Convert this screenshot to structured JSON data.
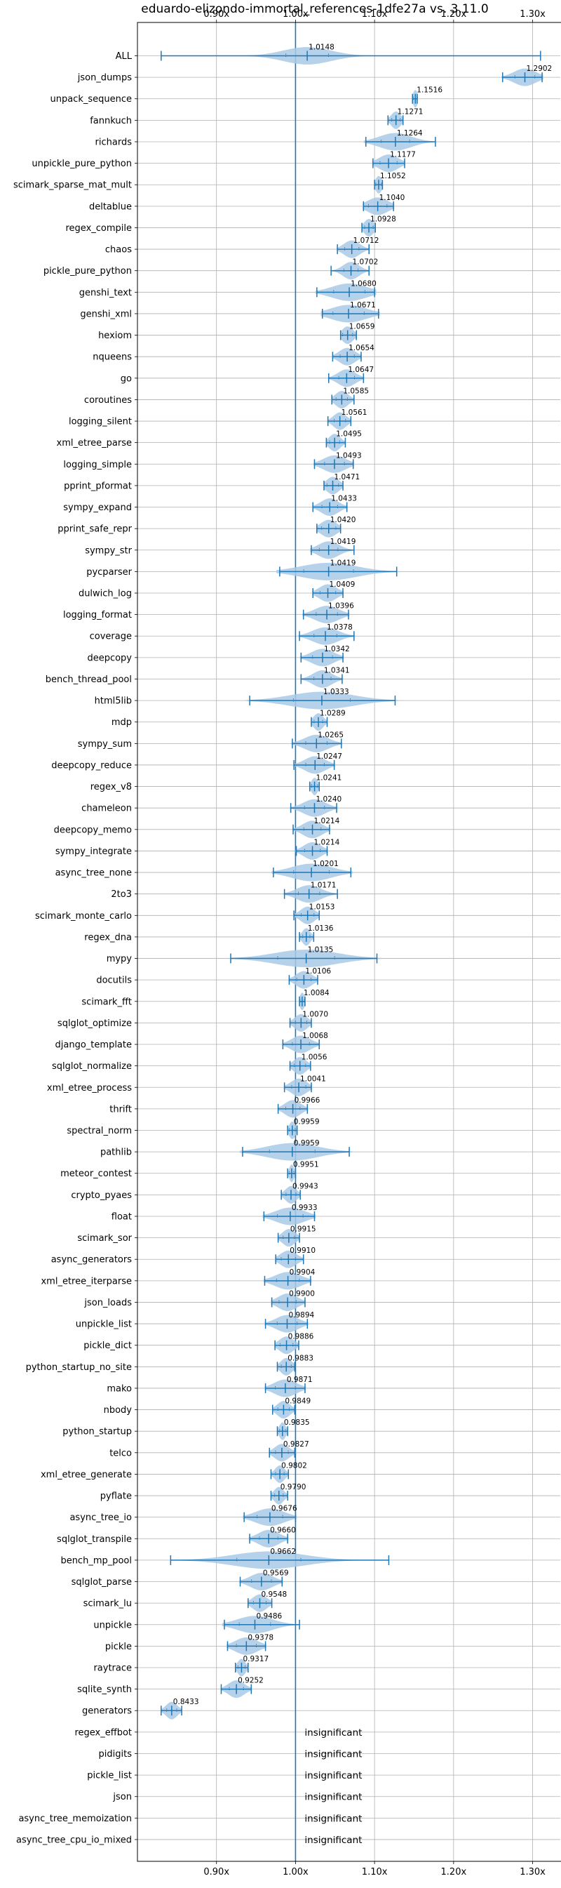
{
  "chart_data": {
    "type": "violin",
    "title": "eduardo-elizondo-immortal_references-1dfe27a vs. 3.11.0",
    "xlabel": "",
    "ylabel": "",
    "xlim": [
      0.8,
      1.335
    ],
    "x_ticks": [
      0.9,
      1.0,
      1.1,
      1.2,
      1.3
    ],
    "x_tick_labels": [
      "0.90x",
      "1.00x",
      "1.10x",
      "1.20x",
      "1.30x"
    ],
    "reference_line": 1.0,
    "grid": true,
    "insignificant_text": "insignificant",
    "colors": {
      "violin": "#a9c9e6",
      "line": "#1f77b4"
    },
    "benchmarks": [
      {
        "name": "ALL",
        "value": 1.0148,
        "min": 0.83,
        "max": 1.31,
        "spread": 0.03,
        "label": "1.0148"
      },
      {
        "name": "json_dumps",
        "value": 1.2902,
        "min": 1.262,
        "max": 1.312,
        "spread": 0.014,
        "label": "1.2902"
      },
      {
        "name": "unpack_sequence",
        "value": 1.1516,
        "min": 1.148,
        "max": 1.154,
        "spread": 0.003,
        "label": "1.1516"
      },
      {
        "name": "fannkuch",
        "value": 1.1271,
        "min": 1.117,
        "max": 1.136,
        "spread": 0.006,
        "label": "1.1271"
      },
      {
        "name": "richards",
        "value": 1.1264,
        "min": 1.089,
        "max": 1.177,
        "spread": 0.02,
        "label": "1.1264"
      },
      {
        "name": "unpickle_pure_python",
        "value": 1.1177,
        "min": 1.098,
        "max": 1.138,
        "spread": 0.012,
        "label": "1.1177"
      },
      {
        "name": "scimark_sparse_mat_mult",
        "value": 1.1052,
        "min": 1.1,
        "max": 1.11,
        "spread": 0.004,
        "label": "1.1052"
      },
      {
        "name": "deltablue",
        "value": 1.104,
        "min": 1.086,
        "max": 1.124,
        "spread": 0.013,
        "label": "1.1040"
      },
      {
        "name": "regex_compile",
        "value": 1.0928,
        "min": 1.084,
        "max": 1.101,
        "spread": 0.006,
        "label": "1.0928"
      },
      {
        "name": "chaos",
        "value": 1.0712,
        "min": 1.053,
        "max": 1.093,
        "spread": 0.01,
        "label": "1.0712"
      },
      {
        "name": "pickle_pure_python",
        "value": 1.0702,
        "min": 1.045,
        "max": 1.093,
        "spread": 0.01,
        "label": "1.0702"
      },
      {
        "name": "genshi_text",
        "value": 1.068,
        "min": 1.027,
        "max": 1.1,
        "spread": 0.022,
        "label": "1.0680"
      },
      {
        "name": "genshi_xml",
        "value": 1.0671,
        "min": 1.034,
        "max": 1.105,
        "spread": 0.022,
        "label": "1.0671"
      },
      {
        "name": "hexiom",
        "value": 1.0659,
        "min": 1.057,
        "max": 1.077,
        "spread": 0.007,
        "label": "1.0659"
      },
      {
        "name": "nqueens",
        "value": 1.0654,
        "min": 1.047,
        "max": 1.083,
        "spread": 0.01,
        "label": "1.0654"
      },
      {
        "name": "go",
        "value": 1.0647,
        "min": 1.042,
        "max": 1.086,
        "spread": 0.011,
        "label": "1.0647"
      },
      {
        "name": "coroutines",
        "value": 1.0585,
        "min": 1.046,
        "max": 1.074,
        "spread": 0.008,
        "label": "1.0585"
      },
      {
        "name": "logging_silent",
        "value": 1.0561,
        "min": 1.041,
        "max": 1.07,
        "spread": 0.008,
        "label": "1.0561"
      },
      {
        "name": "xml_etree_parse",
        "value": 1.0495,
        "min": 1.039,
        "max": 1.063,
        "spread": 0.007,
        "label": "1.0495"
      },
      {
        "name": "logging_simple",
        "value": 1.0493,
        "min": 1.024,
        "max": 1.073,
        "spread": 0.014,
        "label": "1.0493"
      },
      {
        "name": "pprint_pformat",
        "value": 1.0471,
        "min": 1.036,
        "max": 1.06,
        "spread": 0.008,
        "label": "1.0471"
      },
      {
        "name": "sympy_expand",
        "value": 1.0433,
        "min": 1.022,
        "max": 1.065,
        "spread": 0.011,
        "label": "1.0433"
      },
      {
        "name": "pprint_safe_repr",
        "value": 1.042,
        "min": 1.027,
        "max": 1.057,
        "spread": 0.01,
        "label": "1.0420"
      },
      {
        "name": "sympy_str",
        "value": 1.0419,
        "min": 1.02,
        "max": 1.074,
        "spread": 0.013,
        "label": "1.0419"
      },
      {
        "name": "pycparser",
        "value": 1.0419,
        "min": 0.98,
        "max": 1.128,
        "spread": 0.035,
        "label": "1.0419"
      },
      {
        "name": "dulwich_log",
        "value": 1.0409,
        "min": 1.022,
        "max": 1.06,
        "spread": 0.011,
        "label": "1.0409"
      },
      {
        "name": "logging_format",
        "value": 1.0396,
        "min": 1.01,
        "max": 1.067,
        "spread": 0.015,
        "label": "1.0396"
      },
      {
        "name": "coverage",
        "value": 1.0378,
        "min": 1.005,
        "max": 1.074,
        "spread": 0.016,
        "label": "1.0378"
      },
      {
        "name": "deepcopy",
        "value": 1.0342,
        "min": 1.007,
        "max": 1.06,
        "spread": 0.014,
        "label": "1.0342"
      },
      {
        "name": "bench_thread_pool",
        "value": 1.0341,
        "min": 1.007,
        "max": 1.059,
        "spread": 0.012,
        "label": "1.0341"
      },
      {
        "name": "html5lib",
        "value": 1.0333,
        "min": 0.942,
        "max": 1.126,
        "spread": 0.04,
        "label": "1.0333"
      },
      {
        "name": "mdp",
        "value": 1.0289,
        "min": 1.02,
        "max": 1.04,
        "spread": 0.006,
        "label": "1.0289"
      },
      {
        "name": "sympy_sum",
        "value": 1.0265,
        "min": 0.996,
        "max": 1.058,
        "spread": 0.015,
        "label": "1.0265"
      },
      {
        "name": "deepcopy_reduce",
        "value": 1.0247,
        "min": 0.998,
        "max": 1.049,
        "spread": 0.013,
        "label": "1.0247"
      },
      {
        "name": "regex_v8",
        "value": 1.0241,
        "min": 1.018,
        "max": 1.03,
        "spread": 0.004,
        "label": "1.0241"
      },
      {
        "name": "chameleon",
        "value": 1.024,
        "min": 0.994,
        "max": 1.052,
        "spread": 0.014,
        "label": "1.0240"
      },
      {
        "name": "deepcopy_memo",
        "value": 1.0214,
        "min": 0.997,
        "max": 1.043,
        "spread": 0.012,
        "label": "1.0214"
      },
      {
        "name": "sympy_integrate",
        "value": 1.0214,
        "min": 1.001,
        "max": 1.04,
        "spread": 0.011,
        "label": "1.0214"
      },
      {
        "name": "async_tree_none",
        "value": 1.0201,
        "min": 0.972,
        "max": 1.07,
        "spread": 0.025,
        "label": "1.0201"
      },
      {
        "name": "2to3",
        "value": 1.0171,
        "min": 0.986,
        "max": 1.053,
        "spread": 0.015,
        "label": "1.0171"
      },
      {
        "name": "scimark_monte_carlo",
        "value": 1.0153,
        "min": 0.998,
        "max": 1.03,
        "spread": 0.009,
        "label": "1.0153"
      },
      {
        "name": "regex_dna",
        "value": 1.0136,
        "min": 1.005,
        "max": 1.023,
        "spread": 0.005,
        "label": "1.0136"
      },
      {
        "name": "mypy",
        "value": 1.0135,
        "min": 0.918,
        "max": 1.103,
        "spread": 0.04,
        "label": "1.0135"
      },
      {
        "name": "docutils",
        "value": 1.0106,
        "min": 0.992,
        "max": 1.028,
        "spread": 0.01,
        "label": "1.0106"
      },
      {
        "name": "scimark_fft",
        "value": 1.0084,
        "min": 1.005,
        "max": 1.012,
        "spread": 0.003,
        "label": "1.0084"
      },
      {
        "name": "sqlglot_optimize",
        "value": 1.007,
        "min": 0.993,
        "max": 1.02,
        "spread": 0.008,
        "label": "1.0070"
      },
      {
        "name": "django_template",
        "value": 1.0068,
        "min": 0.984,
        "max": 1.03,
        "spread": 0.012,
        "label": "1.0068"
      },
      {
        "name": "sqlglot_normalize",
        "value": 1.0056,
        "min": 0.993,
        "max": 1.019,
        "spread": 0.008,
        "label": "1.0056"
      },
      {
        "name": "xml_etree_process",
        "value": 1.0041,
        "min": 0.986,
        "max": 1.02,
        "spread": 0.01,
        "label": "1.0041"
      },
      {
        "name": "thrift",
        "value": 0.9966,
        "min": 0.978,
        "max": 1.015,
        "spread": 0.01,
        "label": "0.9966"
      },
      {
        "name": "spectral_norm",
        "value": 0.9959,
        "min": 0.99,
        "max": 1.002,
        "spread": 0.004,
        "label": "0.9959"
      },
      {
        "name": "pathlib",
        "value": 0.9959,
        "min": 0.933,
        "max": 1.068,
        "spread": 0.032,
        "label": "0.9959"
      },
      {
        "name": "meteor_contest",
        "value": 0.9951,
        "min": 0.99,
        "max": 1.0,
        "spread": 0.003,
        "label": "0.9951"
      },
      {
        "name": "crypto_pyaes",
        "value": 0.9943,
        "min": 0.982,
        "max": 1.006,
        "spread": 0.007,
        "label": "0.9943"
      },
      {
        "name": "float",
        "value": 0.9933,
        "min": 0.96,
        "max": 1.024,
        "spread": 0.018,
        "label": "0.9933"
      },
      {
        "name": "scimark_sor",
        "value": 0.9915,
        "min": 0.978,
        "max": 1.005,
        "spread": 0.008,
        "label": "0.9915"
      },
      {
        "name": "async_generators",
        "value": 0.991,
        "min": 0.975,
        "max": 1.01,
        "spread": 0.01,
        "label": "0.9910"
      },
      {
        "name": "xml_etree_iterparse",
        "value": 0.9904,
        "min": 0.961,
        "max": 1.019,
        "spread": 0.016,
        "label": "0.9904"
      },
      {
        "name": "json_loads",
        "value": 0.99,
        "min": 0.97,
        "max": 1.012,
        "spread": 0.012,
        "label": "0.9900"
      },
      {
        "name": "unpickle_list",
        "value": 0.9894,
        "min": 0.962,
        "max": 1.015,
        "spread": 0.014,
        "label": "0.9894"
      },
      {
        "name": "pickle_dict",
        "value": 0.9886,
        "min": 0.974,
        "max": 1.004,
        "spread": 0.009,
        "label": "0.9886"
      },
      {
        "name": "python_startup_no_site",
        "value": 0.9883,
        "min": 0.977,
        "max": 0.999,
        "spread": 0.007,
        "label": "0.9883"
      },
      {
        "name": "mako",
        "value": 0.9871,
        "min": 0.962,
        "max": 1.012,
        "spread": 0.014,
        "label": "0.9871"
      },
      {
        "name": "nbody",
        "value": 0.9849,
        "min": 0.971,
        "max": 0.999,
        "spread": 0.008,
        "label": "0.9849"
      },
      {
        "name": "python_startup",
        "value": 0.9835,
        "min": 0.977,
        "max": 0.99,
        "spread": 0.004,
        "label": "0.9835"
      },
      {
        "name": "telco",
        "value": 0.9827,
        "min": 0.967,
        "max": 0.999,
        "spread": 0.009,
        "label": "0.9827"
      },
      {
        "name": "xml_etree_generate",
        "value": 0.9802,
        "min": 0.969,
        "max": 0.991,
        "spread": 0.006,
        "label": "0.9802"
      },
      {
        "name": "pyflate",
        "value": 0.979,
        "min": 0.969,
        "max": 0.99,
        "spread": 0.006,
        "label": "0.9790"
      },
      {
        "name": "async_tree_io",
        "value": 0.9676,
        "min": 0.935,
        "max": 1.0,
        "spread": 0.018,
        "label": "0.9676"
      },
      {
        "name": "sqlglot_transpile",
        "value": 0.966,
        "min": 0.942,
        "max": 0.99,
        "spread": 0.013,
        "label": "0.9660"
      },
      {
        "name": "bench_mp_pool",
        "value": 0.9662,
        "min": 0.842,
        "max": 1.118,
        "spread": 0.045,
        "label": "0.9662"
      },
      {
        "name": "sqlglot_parse",
        "value": 0.9569,
        "min": 0.93,
        "max": 0.983,
        "spread": 0.014,
        "label": "0.9569"
      },
      {
        "name": "scimark_lu",
        "value": 0.9548,
        "min": 0.94,
        "max": 0.97,
        "spread": 0.009,
        "label": "0.9548"
      },
      {
        "name": "unpickle",
        "value": 0.9486,
        "min": 0.91,
        "max": 1.005,
        "spread": 0.022,
        "label": "0.9486"
      },
      {
        "name": "pickle",
        "value": 0.9378,
        "min": 0.914,
        "max": 0.962,
        "spread": 0.014,
        "label": "0.9378"
      },
      {
        "name": "raytrace",
        "value": 0.9317,
        "min": 0.924,
        "max": 0.94,
        "spread": 0.005,
        "label": "0.9317"
      },
      {
        "name": "sqlite_synth",
        "value": 0.9252,
        "min": 0.906,
        "max": 0.944,
        "spread": 0.01,
        "label": "0.9252"
      },
      {
        "name": "generators",
        "value": 0.8433,
        "min": 0.83,
        "max": 0.856,
        "spread": 0.007,
        "label": "0.8433"
      },
      {
        "name": "regex_effbot",
        "value": null,
        "label": "insignificant"
      },
      {
        "name": "pidigits",
        "value": null,
        "label": "insignificant"
      },
      {
        "name": "pickle_list",
        "value": null,
        "label": "insignificant"
      },
      {
        "name": "json",
        "value": null,
        "label": "insignificant"
      },
      {
        "name": "async_tree_memoization",
        "value": null,
        "label": "insignificant"
      },
      {
        "name": "async_tree_cpu_io_mixed",
        "value": null,
        "label": "insignificant"
      }
    ]
  }
}
